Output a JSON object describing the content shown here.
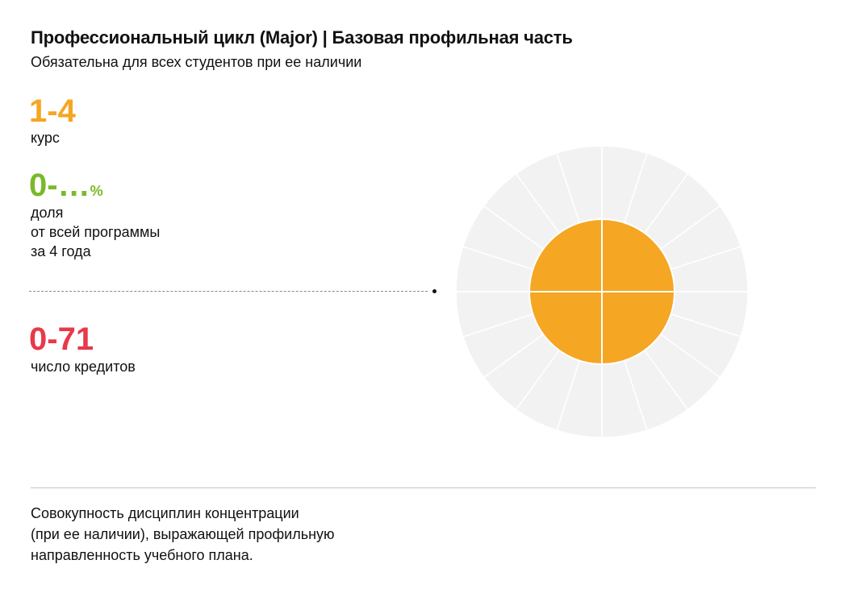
{
  "header": {
    "title": "Профессиональный цикл (Major) | Базовая профильная часть",
    "subtitle": "Обязательна для всех студентов при ее наличии"
  },
  "stats": {
    "course": {
      "value": "1-4",
      "label": "курс",
      "color": "#F5A623"
    },
    "share": {
      "value": "0-…",
      "unit": "%",
      "label_lines": [
        "доля",
        "от всей программы",
        "за 4 года"
      ],
      "color": "#7AB929"
    },
    "credits": {
      "value": "0-71",
      "label": "число кредитов",
      "color": "#E8394A"
    }
  },
  "diagram": {
    "outer_segments": 20,
    "inner_segments": 4,
    "outer_color": "#F2F2F2",
    "inner_color": "#F5A623",
    "separator_color": "#FFFFFF"
  },
  "description": {
    "lines": [
      "Совокупность дисциплин концентрации",
      "(при ее наличии), выражающей профильную",
      "направленность учебного плана."
    ]
  }
}
